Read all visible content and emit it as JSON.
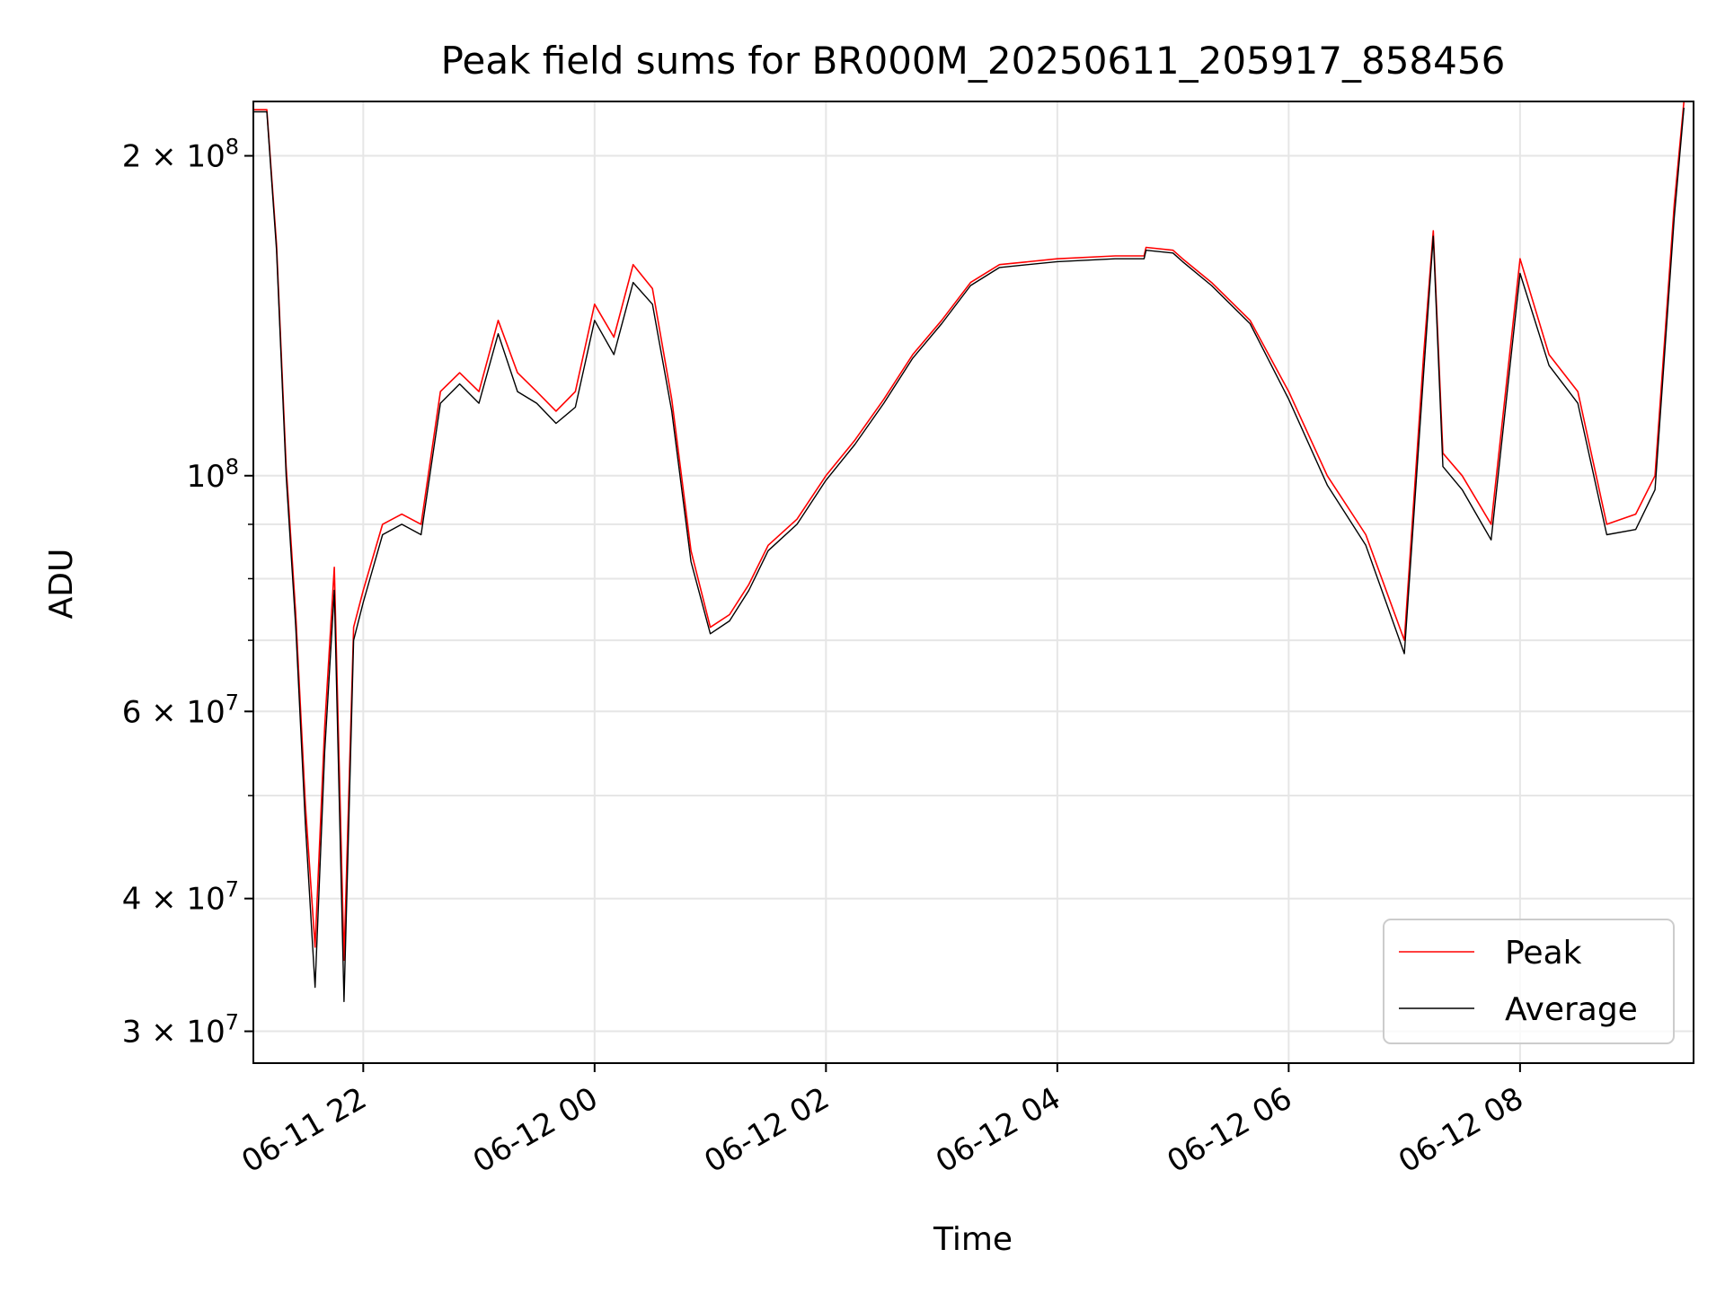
{
  "chart_data": {
    "type": "line",
    "title": "Peak field sums for BR000M_20250611_205917_858456",
    "xlabel": "Time",
    "ylabel": "ADU",
    "y_scale": "log",
    "grid": true,
    "legend_position": "bottom-right",
    "xlim": [
      "06-11 21:03",
      "06-12 09:30"
    ],
    "ylim": [
      28000000,
      225000000
    ],
    "x_ticks": [
      "06-11 22",
      "06-12 00",
      "06-12 02",
      "06-12 04",
      "06-12 06",
      "06-12 08"
    ],
    "y_tick_labels": [
      {
        "value": 200000000,
        "mantissa": "2",
        "exponent": "8"
      },
      {
        "value": 100000000,
        "mantissa": "",
        "exponent": "8"
      },
      {
        "value": 60000000,
        "mantissa": "6",
        "exponent": "7"
      },
      {
        "value": 40000000,
        "mantissa": "4",
        "exponent": "7"
      },
      {
        "value": 30000000,
        "mantissa": "3",
        "exponent": "7"
      }
    ],
    "y_times_sign": "×",
    "y_base": "10",
    "series": [
      {
        "name": "Peak",
        "color": "#ff0000",
        "x": [
          "06-11 21:03",
          "06-11 21:10",
          "06-11 21:15",
          "06-11 21:20",
          "06-11 21:25",
          "06-11 21:30",
          "06-11 21:35",
          "06-11 21:40",
          "06-11 21:45",
          "06-11 21:50",
          "06-11 21:55",
          "06-11 22:00",
          "06-11 22:10",
          "06-11 22:20",
          "06-11 22:30",
          "06-11 22:40",
          "06-11 22:50",
          "06-11 23:00",
          "06-11 23:10",
          "06-11 23:20",
          "06-11 23:30",
          "06-11 23:40",
          "06-11 23:50",
          "06-12 00:00",
          "06-12 00:10",
          "06-12 00:20",
          "06-12 00:30",
          "06-12 00:40",
          "06-12 00:50",
          "06-12 01:00",
          "06-12 01:10",
          "06-12 01:20",
          "06-12 01:30",
          "06-12 01:45",
          "06-12 02:00",
          "06-12 02:15",
          "06-12 02:30",
          "06-12 02:45",
          "06-12 03:00",
          "06-12 03:15",
          "06-12 03:30",
          "06-12 04:00",
          "06-12 04:30",
          "06-12 04:45",
          "06-12 04:46",
          "06-12 05:00",
          "06-12 05:05",
          "06-12 05:20",
          "06-12 05:40",
          "06-12 06:00",
          "06-12 06:20",
          "06-12 06:40",
          "06-12 07:00",
          "06-12 07:10",
          "06-12 07:15",
          "06-12 07:20",
          "06-12 07:30",
          "06-12 07:45",
          "06-12 08:00",
          "06-12 08:15",
          "06-12 08:30",
          "06-12 08:45",
          "06-12 09:00",
          "06-12 09:10",
          "06-12 09:20",
          "06-12 09:25"
        ],
        "y": [
          221000000,
          221000000,
          165000000,
          102000000,
          74000000,
          49000000,
          36000000,
          58000000,
          82000000,
          35000000,
          72000000,
          78000000,
          90000000,
          92000000,
          90000000,
          120000000,
          125000000,
          120000000,
          140000000,
          125000000,
          120000000,
          115000000,
          120000000,
          145000000,
          135000000,
          158000000,
          150000000,
          118000000,
          85000000,
          72000000,
          74000000,
          79000000,
          86000000,
          91000000,
          100000000,
          108000000,
          118000000,
          130000000,
          140000000,
          152000000,
          158000000,
          160000000,
          161000000,
          161000000,
          164000000,
          163000000,
          160000000,
          152000000,
          140000000,
          120000000,
          100000000,
          88000000,
          70000000,
          130000000,
          170000000,
          105000000,
          100000000,
          90000000,
          160000000,
          130000000,
          120000000,
          90000000,
          92000000,
          100000000,
          180000000,
          225000000
        ]
      },
      {
        "name": "Average",
        "color": "#000000",
        "x": [
          "06-11 21:03",
          "06-11 21:10",
          "06-11 21:15",
          "06-11 21:20",
          "06-11 21:25",
          "06-11 21:30",
          "06-11 21:35",
          "06-11 21:40",
          "06-11 21:45",
          "06-11 21:50",
          "06-11 21:55",
          "06-11 22:00",
          "06-11 22:10",
          "06-11 22:20",
          "06-11 22:30",
          "06-11 22:40",
          "06-11 22:50",
          "06-11 23:00",
          "06-11 23:10",
          "06-11 23:20",
          "06-11 23:30",
          "06-11 23:40",
          "06-11 23:50",
          "06-12 00:00",
          "06-12 00:10",
          "06-12 00:20",
          "06-12 00:30",
          "06-12 00:40",
          "06-12 00:50",
          "06-12 01:00",
          "06-12 01:10",
          "06-12 01:20",
          "06-12 01:30",
          "06-12 01:45",
          "06-12 02:00",
          "06-12 02:15",
          "06-12 02:30",
          "06-12 02:45",
          "06-12 03:00",
          "06-12 03:15",
          "06-12 03:30",
          "06-12 04:00",
          "06-12 04:30",
          "06-12 04:45",
          "06-12 04:46",
          "06-12 05:00",
          "06-12 05:05",
          "06-12 05:20",
          "06-12 05:40",
          "06-12 06:00",
          "06-12 06:20",
          "06-12 06:40",
          "06-12 07:00",
          "06-12 07:10",
          "06-12 07:15",
          "06-12 07:20",
          "06-12 07:30",
          "06-12 07:45",
          "06-12 08:00",
          "06-12 08:15",
          "06-12 08:30",
          "06-12 08:45",
          "06-12 09:00",
          "06-12 09:10",
          "06-12 09:20",
          "06-12 09:25"
        ],
        "y": [
          220000000,
          220000000,
          163000000,
          100000000,
          72000000,
          47000000,
          33000000,
          55000000,
          78000000,
          32000000,
          70000000,
          76000000,
          88000000,
          90000000,
          88000000,
          117000000,
          122000000,
          117000000,
          136000000,
          120000000,
          117000000,
          112000000,
          116000000,
          140000000,
          130000000,
          152000000,
          145000000,
          115000000,
          83000000,
          71000000,
          73000000,
          78000000,
          85000000,
          90000000,
          99000000,
          107000000,
          117000000,
          129000000,
          139000000,
          151000000,
          157000000,
          159000000,
          160000000,
          160000000,
          163000000,
          162000000,
          159000000,
          151000000,
          139000000,
          118000000,
          98000000,
          86000000,
          68000000,
          125000000,
          168000000,
          102000000,
          97000000,
          87000000,
          155000000,
          127000000,
          117000000,
          88000000,
          89000000,
          97000000,
          175000000,
          222000000
        ]
      }
    ]
  }
}
